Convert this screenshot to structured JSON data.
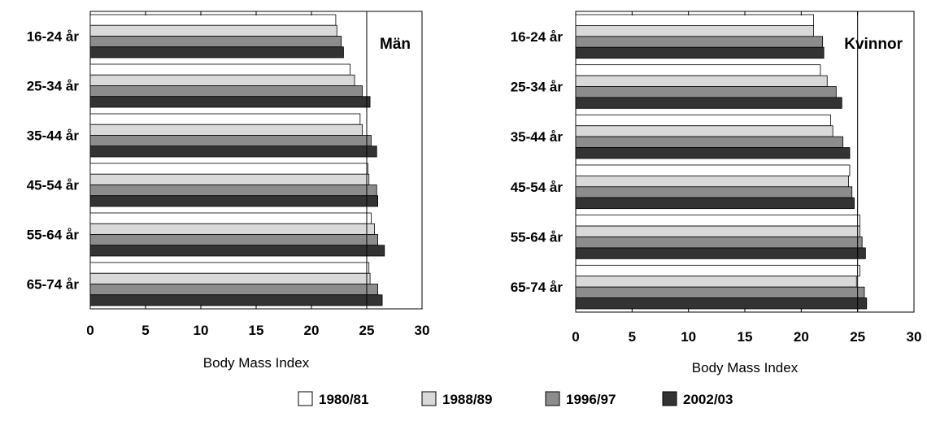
{
  "legend": {
    "items": [
      "1980/81",
      "1988/89",
      "1996/97",
      "2002/03"
    ]
  },
  "colors": {
    "series": [
      "#ffffff",
      "#d9d9d9",
      "#8c8c8c",
      "#333333"
    ],
    "stroke": "#000000"
  },
  "chart_data": [
    {
      "type": "bar",
      "orientation": "horizontal",
      "title": "Män",
      "xlabel": "Body Mass Index",
      "xlim": [
        0,
        30
      ],
      "xticks": [
        0,
        5,
        10,
        15,
        20,
        25,
        30
      ],
      "reference_line": 25,
      "categories": [
        "16-24 år",
        "25-34 år",
        "35-44 år",
        "45-54 år",
        "55-64 år",
        "65-74 år"
      ],
      "series": [
        {
          "name": "1980/81",
          "values": [
            22.2,
            23.5,
            24.4,
            25.1,
            25.4,
            25.2
          ]
        },
        {
          "name": "1988/89",
          "values": [
            22.3,
            23.9,
            24.6,
            25.2,
            25.7,
            25.3
          ]
        },
        {
          "name": "1996/97",
          "values": [
            22.7,
            24.6,
            25.4,
            25.9,
            26.0,
            26.0
          ]
        },
        {
          "name": "2002/03",
          "values": [
            22.9,
            25.3,
            25.9,
            26.0,
            26.6,
            26.4
          ]
        }
      ]
    },
    {
      "type": "bar",
      "orientation": "horizontal",
      "title": "Kvinnor",
      "xlabel": "Body Mass Index",
      "xlim": [
        0,
        30
      ],
      "xticks": [
        0,
        5,
        10,
        15,
        20,
        25,
        30
      ],
      "reference_line": 25,
      "categories": [
        "16-24 år",
        "25-34 år",
        "35-44 år",
        "45-54 år",
        "55-64 år",
        "65-74 år"
      ],
      "series": [
        {
          "name": "1980/81",
          "values": [
            21.1,
            21.7,
            22.6,
            24.3,
            25.2,
            25.2
          ]
        },
        {
          "name": "1988/89",
          "values": [
            21.1,
            22.3,
            22.8,
            24.2,
            25.2,
            24.9
          ]
        },
        {
          "name": "1996/97",
          "values": [
            21.9,
            23.1,
            23.7,
            24.5,
            25.4,
            25.6
          ]
        },
        {
          "name": "2002/03",
          "values": [
            22.0,
            23.6,
            24.3,
            24.7,
            25.7,
            25.8
          ]
        }
      ]
    }
  ]
}
